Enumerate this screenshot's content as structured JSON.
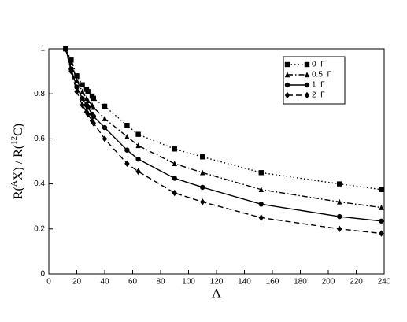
{
  "chart_data": {
    "type": "line",
    "xlabel": "A",
    "ylabel": [
      "R(",
      "A",
      "X) / R(",
      "12",
      "C)"
    ],
    "x": [
      12,
      16,
      20,
      24,
      27,
      28,
      31,
      32,
      40,
      56,
      64,
      90,
      110,
      152,
      208,
      238
    ],
    "series": [
      {
        "name": "0  Γ",
        "color": "#000000",
        "style": "dotted",
        "marker": "square",
        "values": [
          1,
          0.95,
          0.88,
          0.84,
          0.82,
          0.81,
          0.79,
          0.78,
          0.745,
          0.66,
          0.62,
          0.555,
          0.52,
          0.45,
          0.4,
          0.375
        ]
      },
      {
        "name": "0.5  Γ",
        "color": "#000000",
        "style": "dashdot",
        "marker": "triangle",
        "values": [
          1,
          0.94,
          0.86,
          0.81,
          0.78,
          0.77,
          0.75,
          0.74,
          0.69,
          0.61,
          0.57,
          0.49,
          0.45,
          0.375,
          0.32,
          0.295
        ]
      },
      {
        "name": "1  Γ",
        "color": "#000000",
        "style": "solid",
        "marker": "circle",
        "values": [
          1,
          0.91,
          0.83,
          0.78,
          0.75,
          0.74,
          0.71,
          0.7,
          0.65,
          0.55,
          0.51,
          0.425,
          0.385,
          0.31,
          0.255,
          0.235
        ]
      },
      {
        "name": "2  Γ",
        "color": "#000000",
        "style": "dashed",
        "marker": "diamond",
        "values": [
          1,
          0.9,
          0.81,
          0.75,
          0.72,
          0.71,
          0.68,
          0.67,
          0.6,
          0.49,
          0.455,
          0.36,
          0.32,
          0.25,
          0.2,
          0.18
        ]
      }
    ],
    "xlim": [
      0,
      240
    ],
    "xticks": [
      0,
      20,
      40,
      60,
      80,
      100,
      120,
      140,
      160,
      180,
      200,
      220,
      240
    ],
    "ylim": [
      0,
      1
    ],
    "yticks": [
      0,
      0.2,
      0.4,
      0.6,
      0.8,
      1
    ],
    "legend": "top-right",
    "grid": false
  }
}
